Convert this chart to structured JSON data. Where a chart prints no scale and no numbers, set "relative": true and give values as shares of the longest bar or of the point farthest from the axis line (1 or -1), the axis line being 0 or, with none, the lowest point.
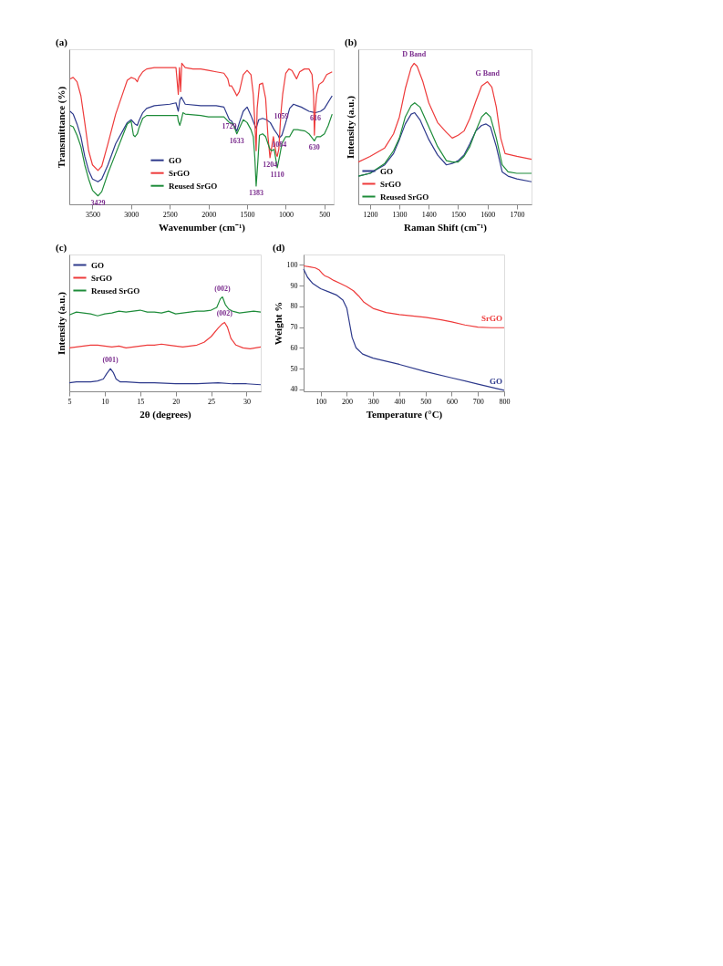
{
  "chart_data": [
    {
      "type": "line",
      "title": "(a)",
      "xlabel": "Wavenumber (cm⁻¹)",
      "ylabel": "Transmittance (%)",
      "relative": true,
      "xlim": [
        3800,
        380
      ],
      "xticks": [
        3500,
        3000,
        2500,
        2000,
        1500,
        1000,
        500
      ],
      "legend": "bottom",
      "grid": false,
      "series": [
        {
          "name": "GO",
          "color": "#2e3a8c",
          "x": [
            3790,
            3750,
            3700,
            3650,
            3600,
            3550,
            3500,
            3429,
            3380,
            3300,
            3200,
            3100,
            3050,
            3000,
            2950,
            2920,
            2900,
            2850,
            2800,
            2700,
            2500,
            2420,
            2390,
            2370,
            2350,
            2300,
            2100,
            1900,
            1800,
            1729,
            1700,
            1633,
            1600,
            1550,
            1500,
            1450,
            1400,
            1383,
            1350,
            1300,
            1250,
            1200,
            1150,
            1100,
            1084,
            1050,
            1000,
            950,
            900,
            850,
            800,
            700,
            616,
            550,
            500,
            400
          ],
          "values": [
            0.66,
            0.64,
            0.57,
            0.48,
            0.34,
            0.24,
            0.18,
            0.16,
            0.18,
            0.28,
            0.43,
            0.53,
            0.58,
            0.6,
            0.57,
            0.56,
            0.59,
            0.65,
            0.68,
            0.7,
            0.71,
            0.72,
            0.66,
            0.74,
            0.76,
            0.71,
            0.7,
            0.7,
            0.69,
            0.6,
            0.59,
            0.52,
            0.58,
            0.66,
            0.69,
            0.63,
            0.56,
            0.54,
            0.6,
            0.61,
            0.6,
            0.58,
            0.53,
            0.49,
            0.47,
            0.49,
            0.58,
            0.68,
            0.71,
            0.7,
            0.69,
            0.66,
            0.65,
            0.66,
            0.68,
            0.77
          ]
        },
        {
          "name": "SrGO",
          "color": "#ee3b3b",
          "x": [
            3790,
            3750,
            3700,
            3650,
            3600,
            3550,
            3500,
            3429,
            3380,
            3300,
            3200,
            3100,
            3050,
            3000,
            2950,
            2920,
            2900,
            2850,
            2800,
            2700,
            2500,
            2420,
            2390,
            2375,
            2360,
            2345,
            2300,
            2200,
            2100,
            2000,
            1900,
            1800,
            1750,
            1729,
            1700,
            1660,
            1633,
            1600,
            1550,
            1500,
            1450,
            1420,
            1400,
            1383,
            1370,
            1340,
            1300,
            1260,
            1230,
            1204,
            1180,
            1160,
            1140,
            1120,
            1110,
            1090,
            1070,
            1059,
            1040,
            1000,
            960,
            920,
            880,
            860,
            820,
            760,
            700,
            660,
            640,
            630,
            616,
            600,
            570,
            520,
            470,
            400
          ],
          "values": [
            0.89,
            0.9,
            0.87,
            0.77,
            0.58,
            0.38,
            0.28,
            0.24,
            0.27,
            0.43,
            0.64,
            0.8,
            0.88,
            0.9,
            0.89,
            0.87,
            0.9,
            0.94,
            0.96,
            0.97,
            0.97,
            0.97,
            0.78,
            0.97,
            0.8,
            1.0,
            0.97,
            0.96,
            0.96,
            0.95,
            0.94,
            0.93,
            0.89,
            0.84,
            0.84,
            0.8,
            0.77,
            0.8,
            0.92,
            0.95,
            0.92,
            0.78,
            0.58,
            0.38,
            0.68,
            0.85,
            0.86,
            0.75,
            0.48,
            0.33,
            0.41,
            0.48,
            0.41,
            0.35,
            0.34,
            0.39,
            0.58,
            0.67,
            0.78,
            0.93,
            0.96,
            0.95,
            0.91,
            0.89,
            0.94,
            0.96,
            0.96,
            0.92,
            0.77,
            0.49,
            0.68,
            0.78,
            0.85,
            0.87,
            0.92,
            0.94
          ]
        },
        {
          "name": "Reused SrGO",
          "color": "#1e8c3a",
          "x": [
            3790,
            3750,
            3700,
            3650,
            3600,
            3550,
            3500,
            3429,
            3380,
            3300,
            3200,
            3100,
            3050,
            3000,
            2970,
            2950,
            2920,
            2900,
            2850,
            2800,
            2500,
            2400,
            2390,
            2370,
            2350,
            2330,
            2300,
            2100,
            2000,
            1800,
            1729,
            1680,
            1633,
            1600,
            1550,
            1500,
            1450,
            1420,
            1400,
            1383,
            1360,
            1340,
            1300,
            1260,
            1230,
            1204,
            1180,
            1150,
            1110,
            1080,
            1050,
            1000,
            980,
            950,
            900,
            850,
            750,
            700,
            630,
            600,
            550,
            500,
            450,
            400
          ],
          "values": [
            0.56,
            0.55,
            0.49,
            0.41,
            0.28,
            0.18,
            0.1,
            0.06,
            0.09,
            0.22,
            0.36,
            0.5,
            0.57,
            0.59,
            0.49,
            0.48,
            0.5,
            0.54,
            0.61,
            0.63,
            0.63,
            0.63,
            0.59,
            0.56,
            0.6,
            0.65,
            0.64,
            0.63,
            0.62,
            0.62,
            0.58,
            0.57,
            0.5,
            0.54,
            0.6,
            0.58,
            0.53,
            0.48,
            0.33,
            0.13,
            0.31,
            0.49,
            0.5,
            0.48,
            0.43,
            0.39,
            0.38,
            0.39,
            0.26,
            0.34,
            0.43,
            0.48,
            0.48,
            0.48,
            0.53,
            0.53,
            0.52,
            0.5,
            0.45,
            0.48,
            0.48,
            0.5,
            0.56,
            0.64
          ]
        }
      ],
      "annotations": [
        {
          "text": "3429",
          "x": 3429,
          "y": 0.06
        },
        {
          "text": "1729",
          "x": 1729,
          "y": 0.6
        },
        {
          "text": "1633",
          "x": 1633,
          "y": 0.5
        },
        {
          "text": "1383",
          "x": 1383,
          "y": 0.13
        },
        {
          "text": "1204",
          "x": 1204,
          "y": 0.33
        },
        {
          "text": "1110",
          "x": 1110,
          "y": 0.26
        },
        {
          "text": "1084",
          "x": 1084,
          "y": 0.47
        },
        {
          "text": "1059",
          "x": 1059,
          "y": 0.67
        },
        {
          "text": "630",
          "x": 630,
          "y": 0.45
        },
        {
          "text": "616",
          "x": 616,
          "y": 0.66
        }
      ]
    },
    {
      "type": "line",
      "title": "(b)",
      "xlabel": "Raman Shift (cm⁻¹)",
      "ylabel": "Intensity (a.u.)",
      "relative": true,
      "xlim": [
        1160,
        1750
      ],
      "xticks": [
        1200,
        1300,
        1400,
        1500,
        1600,
        1700
      ],
      "legend": "bottom left",
      "grid": false,
      "series": [
        {
          "name": "GO",
          "color": "#2e3a8c",
          "x": [
            1160,
            1200,
            1250,
            1280,
            1300,
            1320,
            1340,
            1352,
            1370,
            1400,
            1430,
            1460,
            1480,
            1500,
            1520,
            1540,
            1560,
            1580,
            1595,
            1610,
            1630,
            1650,
            1670,
            1700,
            1750
          ],
          "values": [
            0.2,
            0.22,
            0.28,
            0.36,
            0.46,
            0.57,
            0.64,
            0.65,
            0.6,
            0.46,
            0.35,
            0.28,
            0.29,
            0.31,
            0.35,
            0.43,
            0.52,
            0.56,
            0.57,
            0.55,
            0.41,
            0.23,
            0.2,
            0.18,
            0.16
          ]
        },
        {
          "name": "SrGO",
          "color": "#ee3b3b",
          "x": [
            1160,
            1200,
            1250,
            1280,
            1300,
            1320,
            1340,
            1350,
            1360,
            1380,
            1400,
            1430,
            1460,
            1480,
            1500,
            1520,
            1540,
            1560,
            1580,
            1600,
            1615,
            1630,
            1645,
            1660,
            1700,
            1750
          ],
          "values": [
            0.3,
            0.34,
            0.4,
            0.5,
            0.62,
            0.82,
            0.97,
            1.0,
            0.98,
            0.87,
            0.72,
            0.58,
            0.51,
            0.47,
            0.49,
            0.52,
            0.61,
            0.73,
            0.84,
            0.87,
            0.83,
            0.69,
            0.47,
            0.36,
            0.34,
            0.32
          ]
        },
        {
          "name": "Reused SrGO",
          "color": "#1e8c3a",
          "x": [
            1160,
            1200,
            1250,
            1280,
            1300,
            1320,
            1340,
            1352,
            1370,
            1400,
            1430,
            1460,
            1480,
            1500,
            1520,
            1540,
            1560,
            1580,
            1595,
            1610,
            1630,
            1650,
            1670,
            1700,
            1750
          ],
          "values": [
            0.2,
            0.22,
            0.29,
            0.38,
            0.47,
            0.62,
            0.7,
            0.72,
            0.69,
            0.55,
            0.41,
            0.31,
            0.3,
            0.3,
            0.34,
            0.41,
            0.52,
            0.62,
            0.65,
            0.62,
            0.47,
            0.28,
            0.23,
            0.22,
            0.22
          ]
        }
      ],
      "annotations": [
        {
          "text": "D Band",
          "x": 1350,
          "y": 1.0
        },
        {
          "text": "G Band",
          "x": 1600,
          "y": 0.87
        }
      ]
    },
    {
      "type": "line",
      "title": "(c)",
      "xlabel": "2θ (degrees)",
      "ylabel": "Intensity (a.u.)",
      "relative": true,
      "xlim": [
        5,
        32
      ],
      "xticks": [
        5,
        10,
        15,
        20,
        25,
        30
      ],
      "legend": "top left",
      "grid": false,
      "series": [
        {
          "name": "GO",
          "color": "#2e3a8c",
          "x": [
            5,
            6,
            7,
            8,
            9,
            9.8,
            10.3,
            10.8,
            11.2,
            11.6,
            12.2,
            13,
            15,
            17,
            20,
            23,
            26,
            28,
            30,
            32
          ],
          "values": [
            0.09,
            0.1,
            0.1,
            0.1,
            0.11,
            0.13,
            0.19,
            0.24,
            0.2,
            0.13,
            0.1,
            0.1,
            0.09,
            0.09,
            0.08,
            0.08,
            0.09,
            0.08,
            0.08,
            0.07
          ]
        },
        {
          "name": "SrGO",
          "color": "#ee3b3b",
          "x": [
            5,
            6,
            7,
            8,
            9,
            10,
            11,
            12,
            13,
            14,
            15,
            16,
            17,
            18,
            19,
            20,
            21,
            22,
            23,
            24,
            25,
            26,
            26.5,
            26.9,
            27.3,
            27.8,
            28.5,
            29.5,
            30.5,
            32
          ],
          "values": [
            0.46,
            0.47,
            0.48,
            0.49,
            0.49,
            0.48,
            0.47,
            0.48,
            0.46,
            0.47,
            0.48,
            0.49,
            0.49,
            0.5,
            0.49,
            0.48,
            0.47,
            0.48,
            0.49,
            0.52,
            0.58,
            0.67,
            0.71,
            0.73,
            0.68,
            0.56,
            0.49,
            0.46,
            0.45,
            0.47
          ]
        },
        {
          "name": "Reused SrGO",
          "color": "#1e8c3a",
          "x": [
            5,
            6,
            7,
            8,
            9,
            10,
            11,
            12,
            13,
            14,
            15,
            16,
            17,
            18,
            19,
            20,
            21,
            22,
            23,
            24,
            25,
            25.8,
            26.3,
            26.6,
            27,
            27.5,
            28,
            29,
            30,
            31,
            32
          ],
          "values": [
            0.81,
            0.84,
            0.83,
            0.82,
            0.8,
            0.82,
            0.83,
            0.85,
            0.84,
            0.85,
            0.86,
            0.84,
            0.84,
            0.83,
            0.85,
            0.82,
            0.83,
            0.84,
            0.85,
            0.85,
            0.86,
            0.89,
            0.98,
            1.0,
            0.92,
            0.87,
            0.85,
            0.83,
            0.84,
            0.85,
            0.84
          ]
        }
      ],
      "annotations": [
        {
          "text": "(002)",
          "x": 26.6,
          "y": 1.0
        },
        {
          "text": "(002)",
          "x": 26.9,
          "y": 0.73
        },
        {
          "text": "(001)",
          "x": 10.8,
          "y": 0.24
        }
      ]
    },
    {
      "type": "line",
      "title": "(d)",
      "xlabel": "Temperature (°C)",
      "ylabel": "Weight %",
      "xlim": [
        35,
        800
      ],
      "xticks": [
        100,
        200,
        300,
        400,
        500,
        600,
        700,
        800
      ],
      "ylim": [
        39,
        105
      ],
      "yticks": [
        40,
        50,
        60,
        70,
        80,
        90,
        100
      ],
      "grid": false,
      "series": [
        {
          "name": "SrGO",
          "color": "#ee3b3b",
          "x": [
            35,
            60,
            80,
            95,
            105,
            115,
            130,
            150,
            175,
            200,
            225,
            245,
            265,
            300,
            350,
            400,
            500,
            560,
            600,
            650,
            700,
            750,
            800
          ],
          "values": [
            99.5,
            99,
            98.5,
            97.5,
            96,
            94.8,
            94,
            92.5,
            91,
            89.5,
            87.5,
            85,
            82,
            79,
            77,
            76,
            74.7,
            73.5,
            72.5,
            71,
            70,
            69.7,
            69.7
          ]
        },
        {
          "name": "GO",
          "color": "#2e3a8c",
          "x": [
            35,
            50,
            70,
            100,
            130,
            160,
            185,
            200,
            210,
            220,
            235,
            260,
            300,
            400,
            500,
            600,
            700,
            800
          ],
          "values": [
            98,
            94,
            91,
            88.5,
            87,
            85.5,
            83,
            79,
            72,
            65,
            60,
            57,
            55,
            52,
            48.5,
            45.5,
            42.5,
            39.5
          ]
        }
      ]
    }
  ]
}
